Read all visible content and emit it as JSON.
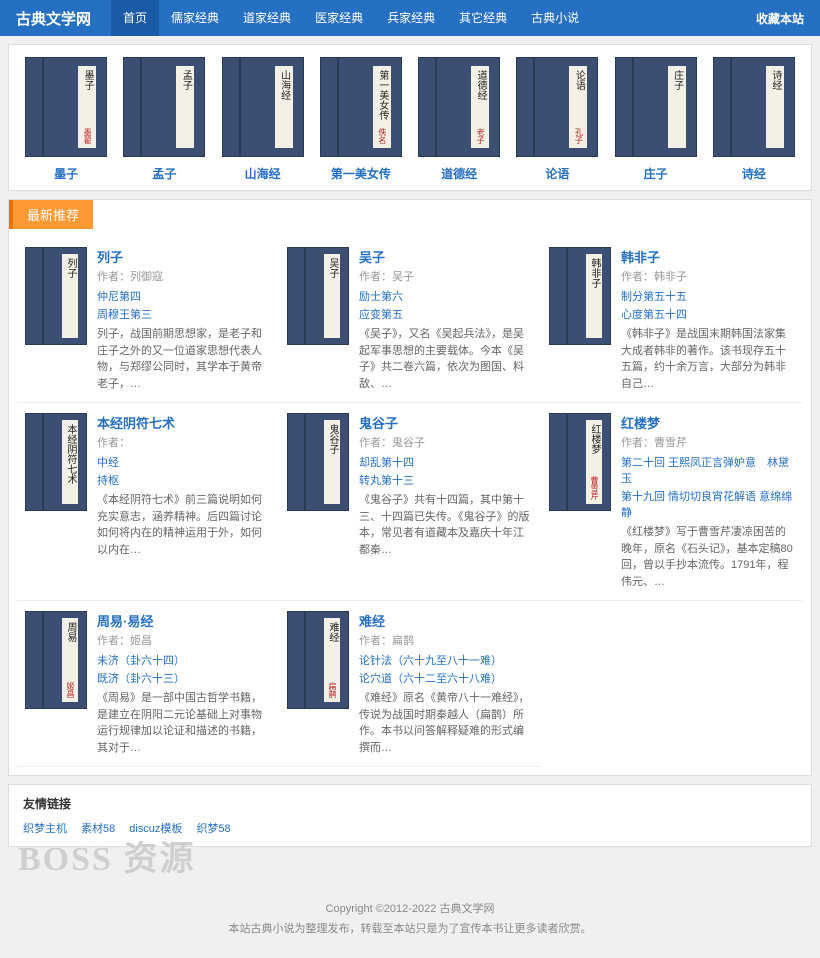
{
  "site": {
    "logo": "古典文学网",
    "bookmark": "收藏本站"
  },
  "nav": [
    {
      "label": "首页",
      "active": true
    },
    {
      "label": "儒家经典",
      "active": false
    },
    {
      "label": "道家经典",
      "active": false
    },
    {
      "label": "医家经典",
      "active": false
    },
    {
      "label": "兵家经典",
      "active": false
    },
    {
      "label": "其它经典",
      "active": false
    },
    {
      "label": "古典小说",
      "active": false
    }
  ],
  "carousel": [
    {
      "title": "墨子",
      "cover_title": "墨子",
      "cover_author": "墨翟"
    },
    {
      "title": "孟子",
      "cover_title": "孟子",
      "cover_author": ""
    },
    {
      "title": "山海经",
      "cover_title": "山海经",
      "cover_author": ""
    },
    {
      "title": "第一美女传",
      "cover_title": "第一美女传",
      "cover_author": "佚名"
    },
    {
      "title": "道德经",
      "cover_title": "道德经",
      "cover_author": "老子"
    },
    {
      "title": "论语",
      "cover_title": "论语",
      "cover_author": "孔子"
    },
    {
      "title": "庄子",
      "cover_title": "庄子",
      "cover_author": ""
    },
    {
      "title": "诗经",
      "cover_title": "诗经",
      "cover_author": ""
    }
  ],
  "section_title": "最新推荐",
  "books": [
    {
      "title": "列子",
      "author": "作者：列御寇",
      "cover_title": "列子",
      "cover_author": "",
      "link1": "仲尼第四",
      "link2": "周穆王第三",
      "desc": "列子，战国前期思想家，是老子和庄子之外的又一位道家思想代表人物，与郑缪公同时，其学本于黄帝老子，…"
    },
    {
      "title": "吴子",
      "author": "作者：吴子",
      "cover_title": "吴子",
      "cover_author": "",
      "link1": "励士第六",
      "link2": "应变第五",
      "desc": "《吴子》，又名《吴起兵法》，是吴起军事思想的主要载体。今本《吴子》共二卷六篇，依次为图国、料敌、…"
    },
    {
      "title": "韩非子",
      "author": "作者：韩非子",
      "cover_title": "韩非子",
      "cover_author": "",
      "link1": "制分第五十五",
      "link2": "心度第五十四",
      "desc": "《韩非子》是战国末期韩国法家集大成者韩非的著作。该书现存五十五篇，约十余万言，大部分为韩非自己…"
    },
    {
      "title": "本经阴符七术",
      "author": "作者：",
      "cover_title": "本经阴符七术",
      "cover_author": "",
      "link1": "中经",
      "link2": "持枢",
      "desc": "《本经阴符七术》前三篇说明如何充实意志，涵养精神。后四篇讨论如何将内在的精神运用于外，如何以内在…"
    },
    {
      "title": "鬼谷子",
      "author": "作者：鬼谷子",
      "cover_title": "鬼谷子",
      "cover_author": "",
      "link1": "却乱第十四",
      "link2": "转丸第十三",
      "desc": "《鬼谷子》共有十四篇，其中第十三、十四篇已失传。《鬼谷子》的版本，常见者有道藏本及嘉庆十年江都秦…"
    },
    {
      "title": "红楼梦",
      "author": "作者：曹雪芹",
      "cover_title": "红楼梦",
      "cover_author": "曹雪芹",
      "link1": "第二十回 王熙凤正言弹妒意　林黛玉",
      "link2": "第十九回 情切切良宵花解语 意绵绵静",
      "desc": "《红楼梦》写于曹雪芹凄凉困苦的晚年，原名《石头记》，基本定稿80回，曾以手抄本流传。1791年，程伟元、…"
    },
    {
      "title": "周易·易经",
      "author": "作者：姬昌",
      "cover_title": "周易",
      "cover_author": "姬昌",
      "link1": "未济（卦六十四）",
      "link2": "既济（卦六十三）",
      "desc": "《周易》是一部中国古哲学书籍，是建立在阴阳二元论基础上对事物运行规律加以论证和描述的书籍，其对于…"
    },
    {
      "title": "难经",
      "author": "作者：扁鹊",
      "cover_title": "难经",
      "cover_author": "扁鹊",
      "link1": "论针法（六十九至八十一难）",
      "link2": "论穴道（六十二至六十八难）",
      "desc": "《难经》原名《黄帝八十一难经》，传说为战国时期秦越人（扁鹊）所作。本书以问答解释疑难的形式编撰而…"
    }
  ],
  "friend_links": {
    "title": "友情链接",
    "items": [
      "织梦主机",
      "素材58",
      "discuz模板",
      "织梦58"
    ]
  },
  "watermark": "BOSS 资源",
  "footer": {
    "copyright": "Copyright ©2012-2022 古典文学网",
    "note": "本站古典小说为整理发布，转载至本站只是为了宣传本书让更多读者欣赏。"
  },
  "colors": {
    "primary": "#2670c3",
    "accent": "#ff9933",
    "book_bg": "#3a4f72"
  }
}
